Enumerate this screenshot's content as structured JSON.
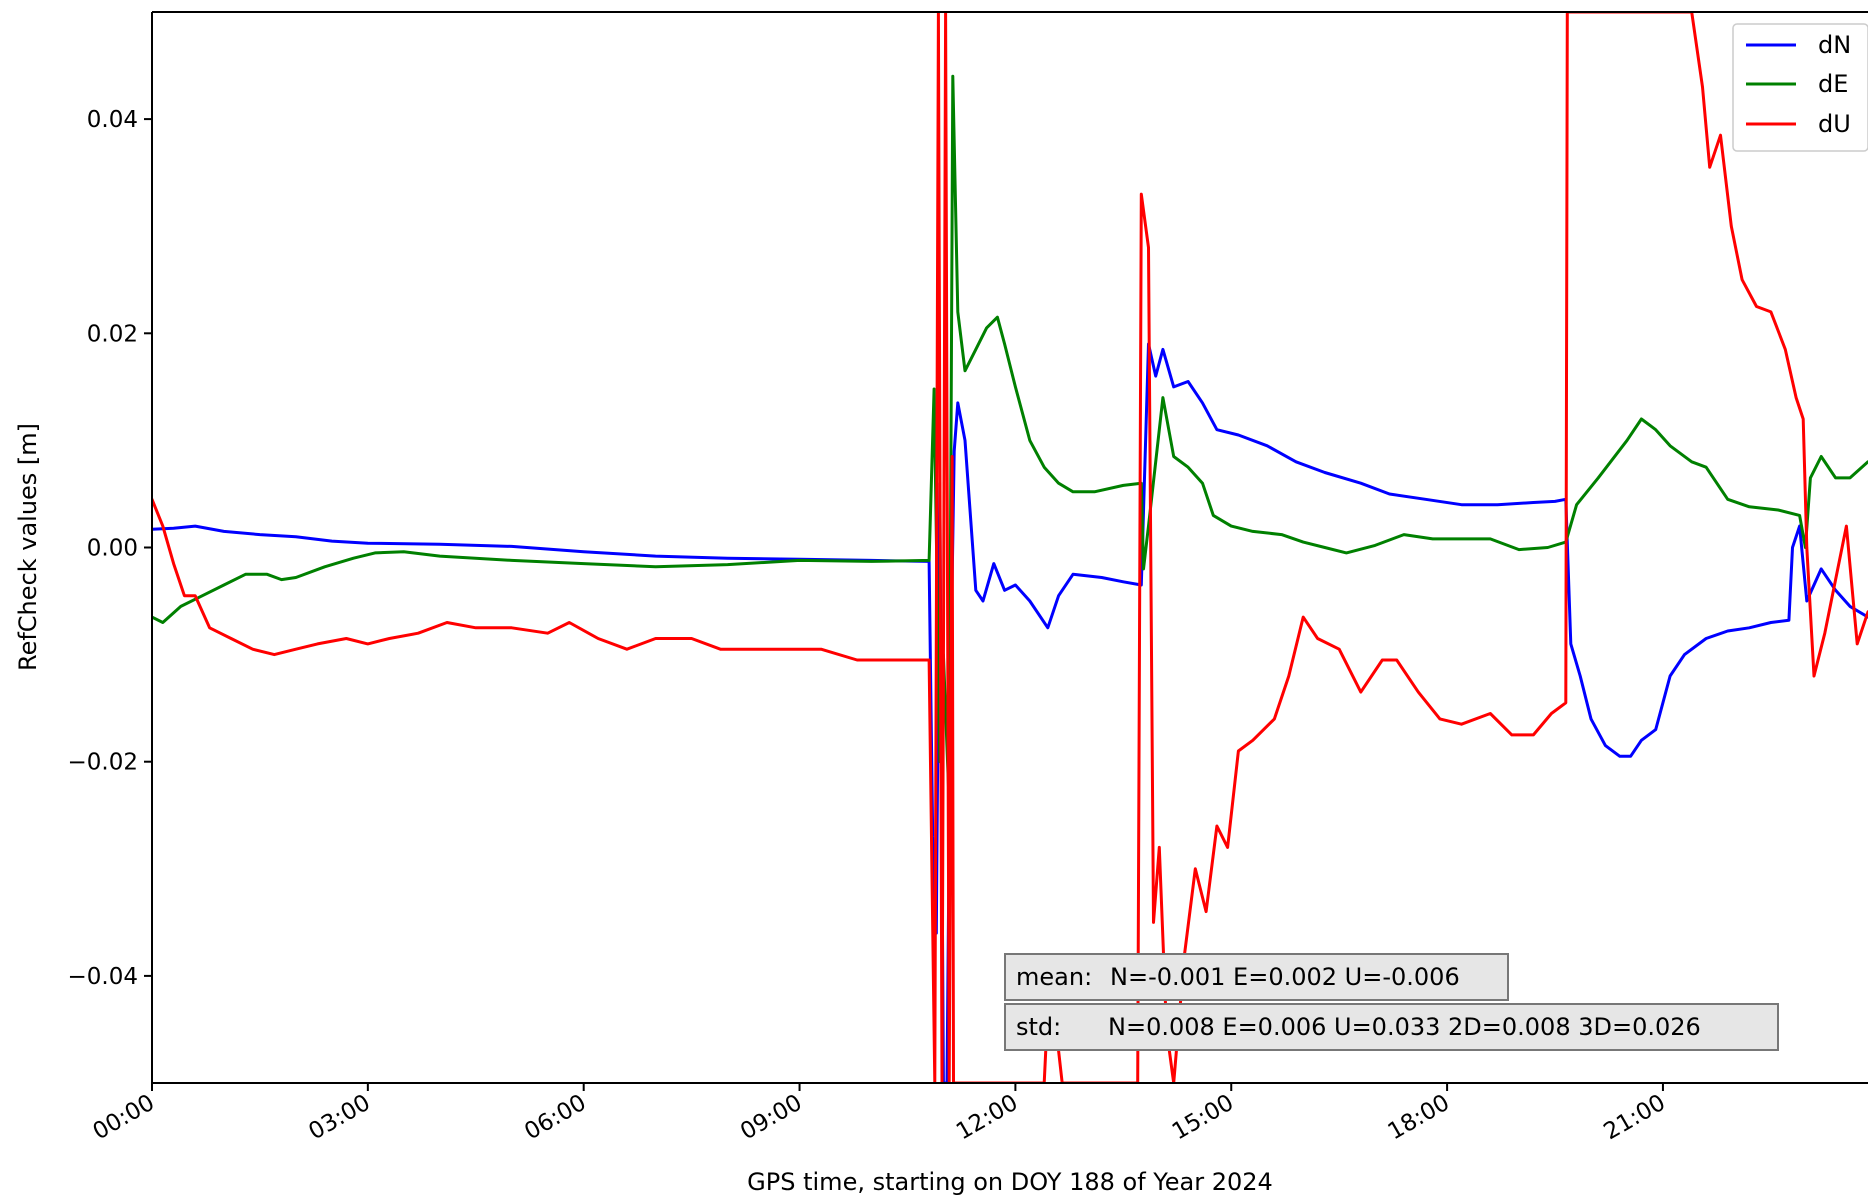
{
  "chart_data": {
    "type": "line",
    "title": "",
    "xlabel": "GPS time, starting on DOY 188 of Year 2024",
    "ylabel": "RefCheck values [m]",
    "xlim_hours": [
      0,
      23.85
    ],
    "ylim": [
      -0.05,
      0.05
    ],
    "x_ticks": [
      {
        "hour": 0,
        "label": "00:00"
      },
      {
        "hour": 3,
        "label": "03:00"
      },
      {
        "hour": 6,
        "label": "06:00"
      },
      {
        "hour": 9,
        "label": "09:00"
      },
      {
        "hour": 12,
        "label": "12:00"
      },
      {
        "hour": 15,
        "label": "15:00"
      },
      {
        "hour": 18,
        "label": "18:00"
      },
      {
        "hour": 21,
        "label": "21:00"
      }
    ],
    "y_ticks": [
      {
        "value": 0.04,
        "label": "0.04"
      },
      {
        "value": 0.02,
        "label": "0.02"
      },
      {
        "value": 0.0,
        "label": "0.00"
      },
      {
        "value": -0.02,
        "label": "−0.02"
      },
      {
        "value": -0.04,
        "label": "−0.04"
      }
    ],
    "grid": false,
    "legend_position": "top-right",
    "series": [
      {
        "name": "dN",
        "color": "#0000ff",
        "points": [
          [
            0,
            0.0017
          ],
          [
            0.3,
            0.0018
          ],
          [
            0.6,
            0.002
          ],
          [
            1.0,
            0.0015
          ],
          [
            1.5,
            0.0012
          ],
          [
            2.0,
            0.001
          ],
          [
            2.5,
            0.0006
          ],
          [
            3.0,
            0.0004
          ],
          [
            4.0,
            0.0003
          ],
          [
            5.0,
            0.0001
          ],
          [
            6.0,
            -0.0004
          ],
          [
            7.0,
            -0.0008
          ],
          [
            8.0,
            -0.001
          ],
          [
            9.0,
            -0.0011
          ],
          [
            10.0,
            -0.0012
          ],
          [
            10.8,
            -0.0013
          ],
          [
            10.85,
            -0.027
          ],
          [
            10.9,
            -0.036
          ],
          [
            10.95,
            0.006
          ],
          [
            11.0,
            -0.05
          ],
          [
            11.05,
            -0.05
          ],
          [
            11.1,
            -0.012
          ],
          [
            11.15,
            0.009
          ],
          [
            11.2,
            0.0135
          ],
          [
            11.3,
            0.01
          ],
          [
            11.45,
            -0.004
          ],
          [
            11.55,
            -0.005
          ],
          [
            11.7,
            -0.0015
          ],
          [
            11.85,
            -0.004
          ],
          [
            12.0,
            -0.0035
          ],
          [
            12.2,
            -0.005
          ],
          [
            12.45,
            -0.0075
          ],
          [
            12.6,
            -0.0045
          ],
          [
            12.8,
            -0.0025
          ],
          [
            13.2,
            -0.0028
          ],
          [
            13.5,
            -0.0032
          ],
          [
            13.75,
            -0.0035
          ],
          [
            13.85,
            0.019
          ],
          [
            13.95,
            0.016
          ],
          [
            14.05,
            0.0185
          ],
          [
            14.2,
            0.015
          ],
          [
            14.4,
            0.0155
          ],
          [
            14.6,
            0.0135
          ],
          [
            14.8,
            0.011
          ],
          [
            15.1,
            0.0105
          ],
          [
            15.5,
            0.0095
          ],
          [
            15.9,
            0.008
          ],
          [
            16.3,
            0.007
          ],
          [
            16.8,
            0.006
          ],
          [
            17.2,
            0.005
          ],
          [
            17.7,
            0.0045
          ],
          [
            18.2,
            0.004
          ],
          [
            18.7,
            0.004
          ],
          [
            19.2,
            0.0042
          ],
          [
            19.5,
            0.0043
          ],
          [
            19.65,
            0.0045
          ],
          [
            19.72,
            -0.009
          ],
          [
            19.85,
            -0.012
          ],
          [
            20.0,
            -0.016
          ],
          [
            20.2,
            -0.0185
          ],
          [
            20.4,
            -0.0195
          ],
          [
            20.55,
            -0.0195
          ],
          [
            20.7,
            -0.018
          ],
          [
            20.9,
            -0.017
          ],
          [
            21.1,
            -0.012
          ],
          [
            21.3,
            -0.01
          ],
          [
            21.6,
            -0.0085
          ],
          [
            21.9,
            -0.0078
          ],
          [
            22.2,
            -0.0075
          ],
          [
            22.5,
            -0.007
          ],
          [
            22.75,
            -0.0068
          ],
          [
            22.8,
            0.0
          ],
          [
            22.9,
            0.002
          ],
          [
            23.0,
            -0.005
          ],
          [
            23.2,
            -0.002
          ],
          [
            23.4,
            -0.004
          ],
          [
            23.6,
            -0.0055
          ],
          [
            23.85,
            -0.0065
          ]
        ]
      },
      {
        "name": "dE",
        "color": "#008000",
        "points": [
          [
            0,
            -0.0065
          ],
          [
            0.15,
            -0.007
          ],
          [
            0.4,
            -0.0055
          ],
          [
            0.7,
            -0.0045
          ],
          [
            1.0,
            -0.0035
          ],
          [
            1.3,
            -0.0025
          ],
          [
            1.6,
            -0.0025
          ],
          [
            1.8,
            -0.003
          ],
          [
            2.0,
            -0.0028
          ],
          [
            2.4,
            -0.0018
          ],
          [
            2.8,
            -0.001
          ],
          [
            3.1,
            -0.0005
          ],
          [
            3.5,
            -0.0004
          ],
          [
            4.0,
            -0.0008
          ],
          [
            5.0,
            -0.0012
          ],
          [
            6.0,
            -0.0015
          ],
          [
            7.0,
            -0.0018
          ],
          [
            8.0,
            -0.0016
          ],
          [
            9.0,
            -0.0012
          ],
          [
            10.0,
            -0.0013
          ],
          [
            10.8,
            -0.0012
          ],
          [
            10.87,
            0.0148
          ],
          [
            10.95,
            -0.02
          ],
          [
            11.0,
            -0.01
          ],
          [
            11.08,
            -0.024
          ],
          [
            11.13,
            0.044
          ],
          [
            11.2,
            0.022
          ],
          [
            11.3,
            0.0165
          ],
          [
            11.45,
            0.0185
          ],
          [
            11.6,
            0.0205
          ],
          [
            11.75,
            0.0215
          ],
          [
            11.85,
            0.019
          ],
          [
            12.0,
            0.015
          ],
          [
            12.2,
            0.01
          ],
          [
            12.4,
            0.0075
          ],
          [
            12.6,
            0.006
          ],
          [
            12.8,
            0.0052
          ],
          [
            13.1,
            0.0052
          ],
          [
            13.5,
            0.0058
          ],
          [
            13.75,
            0.006
          ],
          [
            13.78,
            -0.002
          ],
          [
            13.85,
            0.002
          ],
          [
            13.95,
            0.008
          ],
          [
            14.05,
            0.014
          ],
          [
            14.2,
            0.0085
          ],
          [
            14.4,
            0.0075
          ],
          [
            14.6,
            0.006
          ],
          [
            14.75,
            0.003
          ],
          [
            15.0,
            0.002
          ],
          [
            15.3,
            0.0015
          ],
          [
            15.7,
            0.0012
          ],
          [
            16.0,
            0.0005
          ],
          [
            16.3,
            0.0
          ],
          [
            16.6,
            -0.0005
          ],
          [
            17.0,
            0.0002
          ],
          [
            17.4,
            0.0012
          ],
          [
            17.8,
            0.0008
          ],
          [
            18.2,
            0.0008
          ],
          [
            18.6,
            0.0008
          ],
          [
            19.0,
            -0.0002
          ],
          [
            19.4,
            0.0
          ],
          [
            19.65,
            0.0005
          ],
          [
            19.8,
            0.004
          ],
          [
            20.1,
            0.0065
          ],
          [
            20.5,
            0.01
          ],
          [
            20.7,
            0.012
          ],
          [
            20.9,
            0.011
          ],
          [
            21.1,
            0.0095
          ],
          [
            21.4,
            0.008
          ],
          [
            21.6,
            0.0075
          ],
          [
            21.9,
            0.0045
          ],
          [
            22.2,
            0.0038
          ],
          [
            22.6,
            0.0035
          ],
          [
            22.9,
            0.003
          ],
          [
            22.98,
            0.0
          ],
          [
            23.05,
            0.0065
          ],
          [
            23.2,
            0.0085
          ],
          [
            23.4,
            0.0065
          ],
          [
            23.6,
            0.0065
          ],
          [
            23.85,
            0.008
          ]
        ]
      },
      {
        "name": "dU",
        "color": "#ff0000",
        "points": [
          [
            0,
            0.0045
          ],
          [
            0.15,
            0.002
          ],
          [
            0.3,
            -0.0015
          ],
          [
            0.45,
            -0.0045
          ],
          [
            0.6,
            -0.0045
          ],
          [
            0.8,
            -0.0075
          ],
          [
            1.1,
            -0.0085
          ],
          [
            1.4,
            -0.0095
          ],
          [
            1.7,
            -0.01
          ],
          [
            2.0,
            -0.0095
          ],
          [
            2.3,
            -0.009
          ],
          [
            2.7,
            -0.0085
          ],
          [
            3.0,
            -0.009
          ],
          [
            3.3,
            -0.0085
          ],
          [
            3.7,
            -0.008
          ],
          [
            4.1,
            -0.007
          ],
          [
            4.5,
            -0.0075
          ],
          [
            5.0,
            -0.0075
          ],
          [
            5.5,
            -0.008
          ],
          [
            5.8,
            -0.007
          ],
          [
            6.2,
            -0.0085
          ],
          [
            6.6,
            -0.0095
          ],
          [
            7.0,
            -0.0085
          ],
          [
            7.5,
            -0.0085
          ],
          [
            7.9,
            -0.0095
          ],
          [
            8.4,
            -0.0095
          ],
          [
            8.9,
            -0.0095
          ],
          [
            9.3,
            -0.0095
          ],
          [
            9.8,
            -0.0105
          ],
          [
            10.5,
            -0.0105
          ],
          [
            10.8,
            -0.0105
          ],
          [
            10.88,
            -0.05
          ],
          [
            10.93,
            0.05
          ],
          [
            10.98,
            -0.05
          ],
          [
            11.03,
            0.05
          ],
          [
            11.08,
            -0.05
          ],
          [
            11.12,
            0.0085
          ],
          [
            11.14,
            -0.05
          ],
          [
            11.8,
            -0.05
          ],
          [
            12.4,
            -0.05
          ],
          [
            12.45,
            -0.043
          ],
          [
            12.6,
            -0.047
          ],
          [
            12.65,
            -0.05
          ],
          [
            13.7,
            -0.05
          ],
          [
            13.75,
            0.033
          ],
          [
            13.85,
            0.028
          ],
          [
            13.92,
            -0.035
          ],
          [
            14.0,
            -0.028
          ],
          [
            14.1,
            -0.045
          ],
          [
            14.2,
            -0.05
          ],
          [
            14.35,
            -0.038
          ],
          [
            14.5,
            -0.03
          ],
          [
            14.65,
            -0.034
          ],
          [
            14.8,
            -0.026
          ],
          [
            14.95,
            -0.028
          ],
          [
            15.1,
            -0.019
          ],
          [
            15.3,
            -0.018
          ],
          [
            15.6,
            -0.016
          ],
          [
            15.8,
            -0.012
          ],
          [
            16.0,
            -0.0065
          ],
          [
            16.2,
            -0.0085
          ],
          [
            16.5,
            -0.0095
          ],
          [
            16.8,
            -0.0135
          ],
          [
            17.1,
            -0.0105
          ],
          [
            17.3,
            -0.0105
          ],
          [
            17.6,
            -0.0135
          ],
          [
            17.9,
            -0.016
          ],
          [
            18.2,
            -0.0165
          ],
          [
            18.6,
            -0.0155
          ],
          [
            18.9,
            -0.0175
          ],
          [
            19.2,
            -0.0175
          ],
          [
            19.45,
            -0.0155
          ],
          [
            19.65,
            -0.0145
          ],
          [
            19.67,
            0.05
          ],
          [
            19.75,
            0.05
          ],
          [
            21.0,
            0.05
          ],
          [
            21.4,
            0.05
          ],
          [
            21.55,
            0.043
          ],
          [
            21.65,
            0.0355
          ],
          [
            21.8,
            0.0385
          ],
          [
            21.95,
            0.03
          ],
          [
            22.1,
            0.025
          ],
          [
            22.3,
            0.0225
          ],
          [
            22.5,
            0.022
          ],
          [
            22.7,
            0.0185
          ],
          [
            22.85,
            0.014
          ],
          [
            22.95,
            0.012
          ],
          [
            23.0,
            0.0
          ],
          [
            23.1,
            -0.012
          ],
          [
            23.25,
            -0.008
          ],
          [
            23.4,
            -0.003
          ],
          [
            23.55,
            0.002
          ],
          [
            23.7,
            -0.009
          ],
          [
            23.85,
            -0.006
          ]
        ]
      }
    ],
    "annotations": [
      {
        "label": "mean:",
        "text": "N=-0.001 E=0.002 U=-0.006"
      },
      {
        "label": "std:",
        "text": "N=0.008 E=0.006 U=0.033 2D=0.008 3D=0.026"
      }
    ]
  }
}
